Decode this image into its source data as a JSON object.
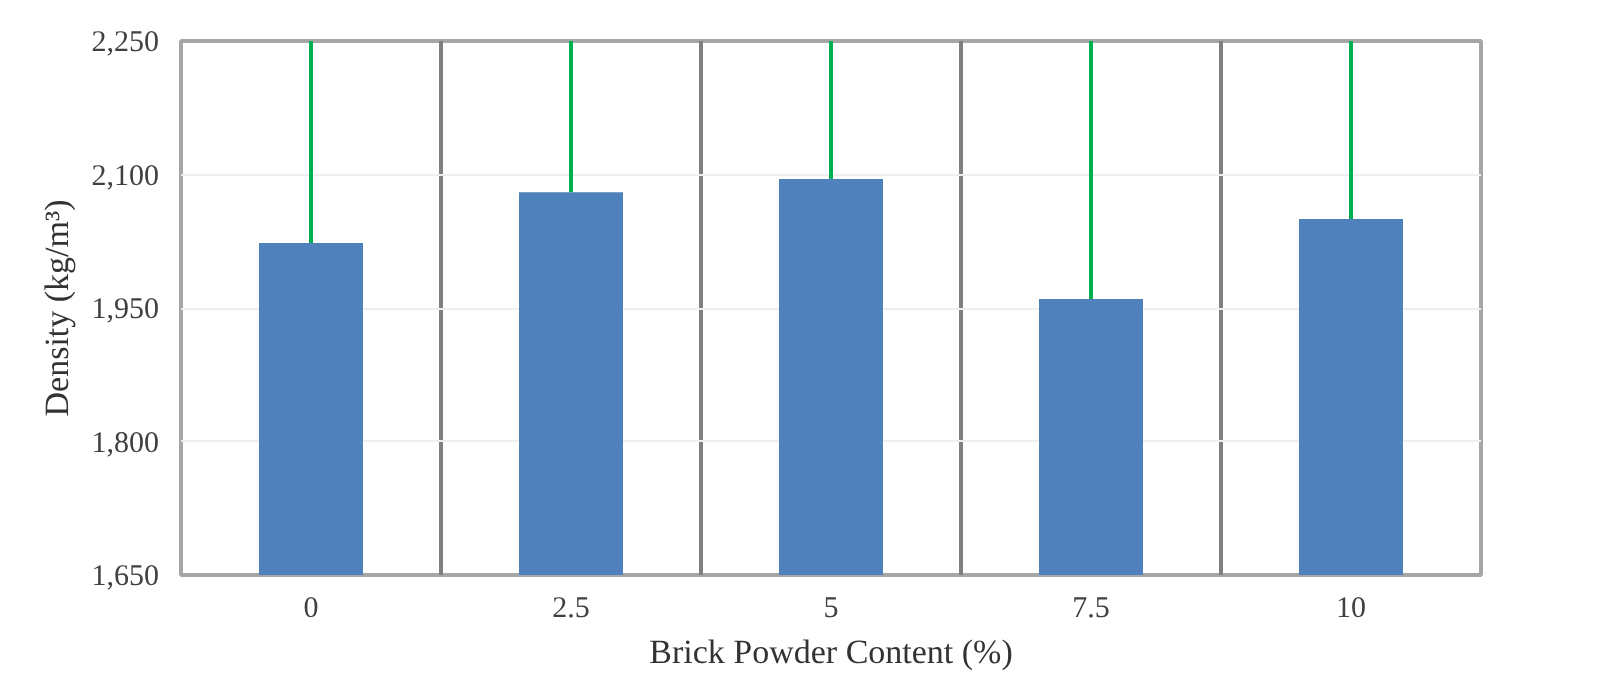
{
  "chart_data": {
    "type": "bar",
    "xlabel": "Brick Powder Content (%)",
    "ylabel": "Density (kg/m³)",
    "categories": [
      "0",
      "2.5",
      "5",
      "7.5",
      "10"
    ],
    "values": [
      2023,
      2080,
      2095,
      1960,
      2050
    ],
    "color": "#4f81bd",
    "errors": [
      [
        2023,
        2250
      ],
      [
        2080,
        2250
      ],
      [
        2095,
        2250
      ],
      [
        1960,
        2250
      ],
      [
        2050,
        2250
      ]
    ],
    "ylim": [
      1650,
      2250
    ],
    "yticks": [
      {
        "value": 1650,
        "label": "1,650"
      },
      {
        "value": 1800,
        "label": "1,800"
      },
      {
        "value": 1950,
        "label": "1,950"
      },
      {
        "value": 2100,
        "label": "2,100"
      },
      {
        "value": 2250,
        "label": "2,250"
      }
    ],
    "grid": true
  }
}
